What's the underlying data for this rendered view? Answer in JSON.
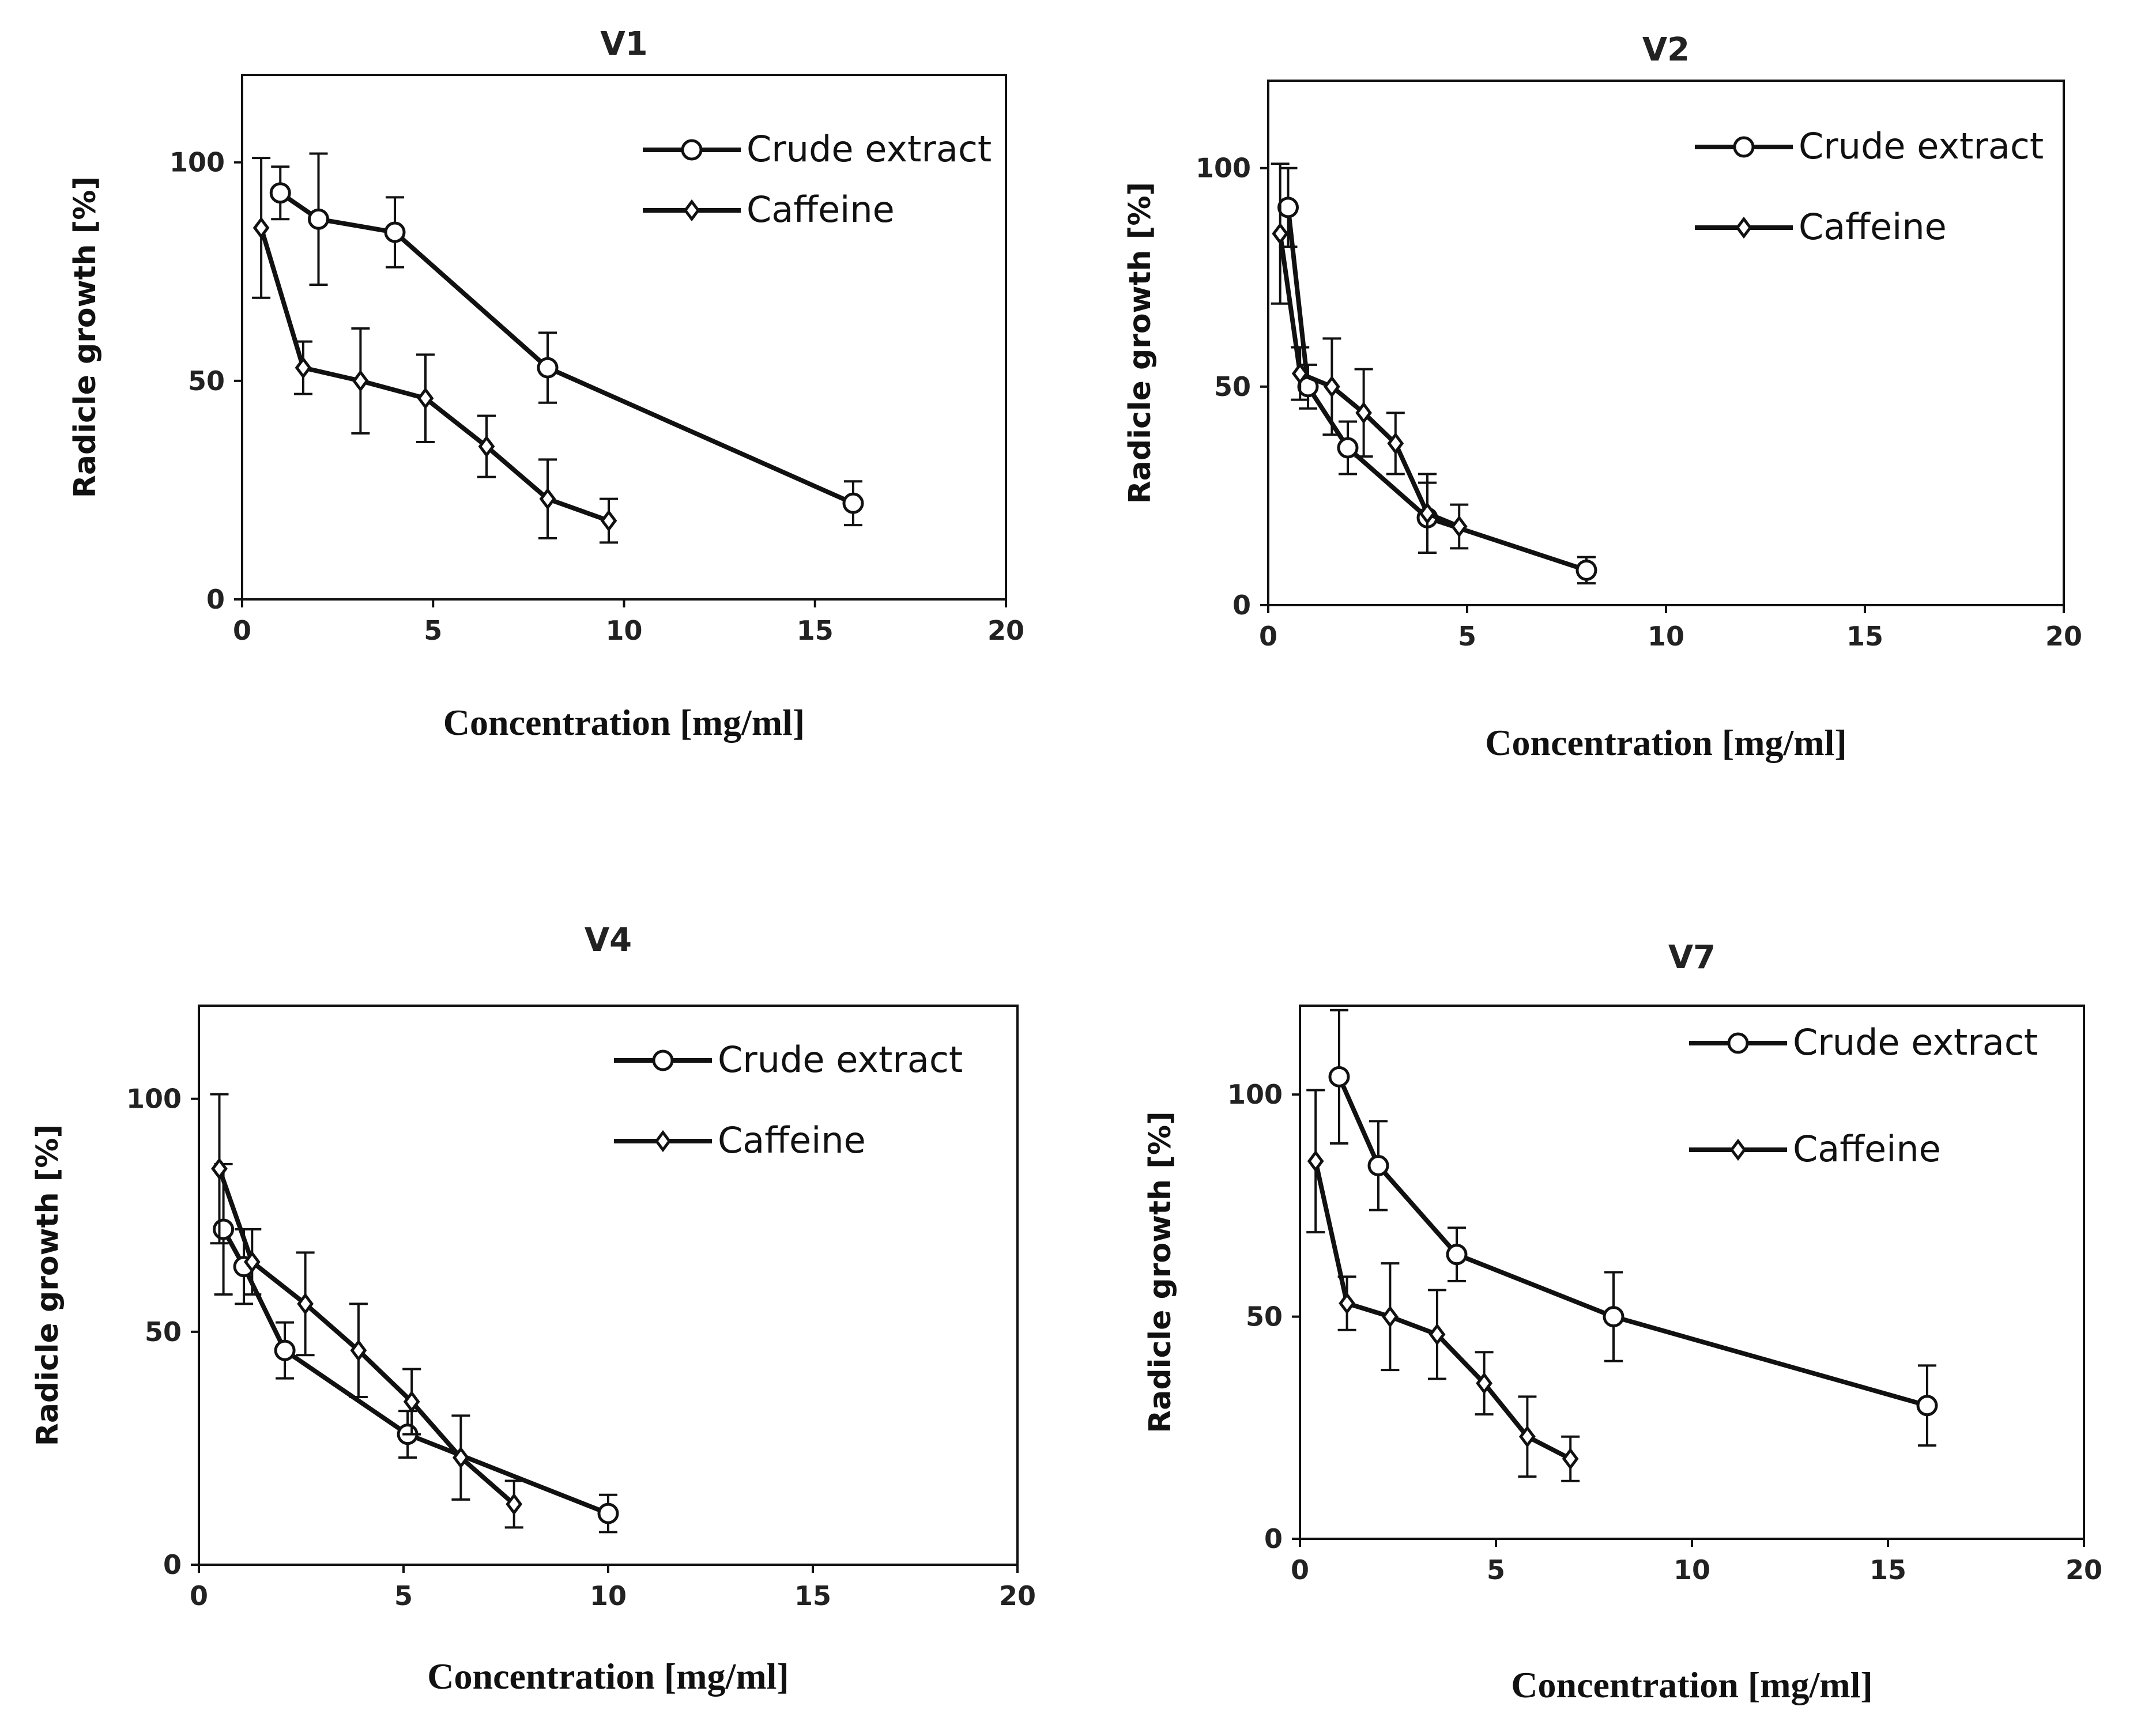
{
  "chart_data": [
    {
      "type": "line",
      "title": "V1",
      "xlabel": "Concentration   [mg/ml]",
      "ylabel": "Radicle growth [%]",
      "xlim": [
        0,
        20
      ],
      "ylim": [
        0,
        120
      ],
      "xticks": [
        "0",
        "5",
        "10",
        "15",
        "20"
      ],
      "yticks": [
        "0",
        "50",
        "100"
      ],
      "legend": [
        "Crude extract",
        "Caffeine"
      ],
      "series": [
        {
          "name": "Crude extract",
          "marker": "circle",
          "x": [
            1,
            2,
            4,
            8,
            16
          ],
          "y": [
            93,
            87,
            84,
            53,
            22
          ],
          "err": [
            6,
            15,
            8,
            8,
            5
          ]
        },
        {
          "name": "Caffeine",
          "marker": "diamond",
          "x": [
            0.5,
            1.6,
            3.1,
            4.8,
            6.4,
            8,
            9.6
          ],
          "y": [
            85,
            53,
            50,
            46,
            35,
            23,
            18
          ],
          "err": [
            16,
            6,
            12,
            10,
            7,
            9,
            5
          ]
        }
      ]
    },
    {
      "type": "line",
      "title": "V2",
      "xlabel": "Concentration   [mg/ml]",
      "ylabel": "Radicle growth [%]",
      "xlim": [
        0,
        20
      ],
      "ylim": [
        0,
        120
      ],
      "xticks": [
        "0",
        "5",
        "10",
        "15",
        "20"
      ],
      "yticks": [
        "0",
        "50",
        "100"
      ],
      "legend": [
        "Crude extract",
        "Caffeine"
      ],
      "series": [
        {
          "name": "Crude extract",
          "marker": "circle",
          "x": [
            0.5,
            1,
            2,
            4,
            8
          ],
          "y": [
            91,
            50,
            36,
            20,
            8
          ],
          "err": [
            9,
            5,
            6,
            8,
            3
          ]
        },
        {
          "name": "Caffeine",
          "marker": "diamond",
          "x": [
            0.3,
            0.8,
            1.6,
            2.4,
            3.2,
            4,
            4.8
          ],
          "y": [
            85,
            53,
            50,
            44,
            37,
            21,
            18
          ],
          "err": [
            16,
            6,
            11,
            10,
            7,
            9,
            5
          ]
        }
      ]
    },
    {
      "type": "line",
      "title": "V4",
      "xlabel": "Concentration [mg/ml]",
      "ylabel": "Radicle growth [%]",
      "xlim": [
        0,
        20
      ],
      "ylim": [
        0,
        120
      ],
      "xticks": [
        "0",
        "5",
        "10",
        "15",
        "20"
      ],
      "yticks": [
        "0",
        "50",
        "100"
      ],
      "legend": [
        "Crude extract",
        "Caffeine"
      ],
      "series": [
        {
          "name": "Crude extract",
          "marker": "circle",
          "x": [
            0.6,
            1.1,
            2.1,
            5.1,
            10
          ],
          "y": [
            72,
            64,
            46,
            28,
            11
          ],
          "err": [
            14,
            8,
            6,
            5,
            4
          ]
        },
        {
          "name": "Caffeine",
          "marker": "diamond",
          "x": [
            0.5,
            1.3,
            2.6,
            3.9,
            5.2,
            6.4,
            7.7
          ],
          "y": [
            85,
            65,
            56,
            46,
            35,
            23,
            13
          ],
          "err": [
            16,
            7,
            11,
            10,
            7,
            9,
            5
          ]
        }
      ]
    },
    {
      "type": "line",
      "title": "V7",
      "xlabel": "Concentration   [mg/ml]",
      "ylabel": "Radicle growth [%]",
      "xlim": [
        0,
        20
      ],
      "ylim": [
        0,
        120
      ],
      "xticks": [
        "0",
        "5",
        "10",
        "15",
        "20"
      ],
      "yticks": [
        "0",
        "50",
        "100"
      ],
      "legend": [
        "Crude extract",
        "Caffeine"
      ],
      "series": [
        {
          "name": "Crude extract",
          "marker": "circle",
          "x": [
            1,
            2,
            4,
            8,
            16
          ],
          "y": [
            104,
            84,
            64,
            50,
            30
          ],
          "err": [
            15,
            10,
            6,
            10,
            9
          ]
        },
        {
          "name": "Caffeine",
          "marker": "diamond",
          "x": [
            0.4,
            1.2,
            2.3,
            3.5,
            4.7,
            5.8,
            6.9
          ],
          "y": [
            85,
            53,
            50,
            46,
            35,
            23,
            18
          ],
          "err": [
            16,
            6,
            12,
            10,
            7,
            9,
            5
          ]
        }
      ]
    }
  ]
}
